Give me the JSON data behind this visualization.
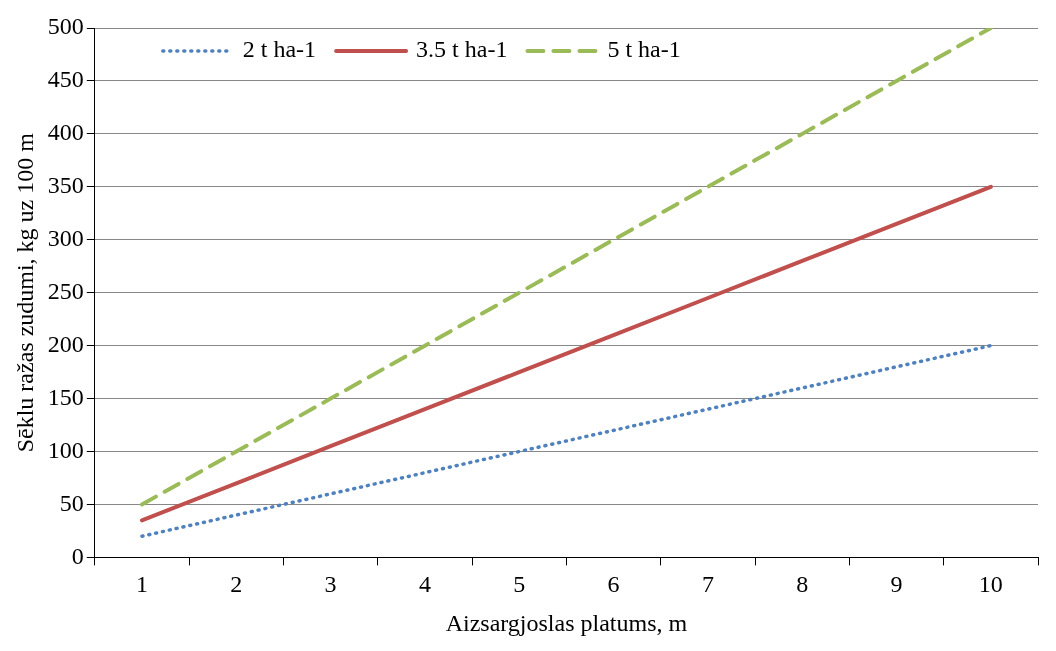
{
  "chart_data": {
    "type": "line",
    "xlabel": "Aizsargjoslas platums, m",
    "ylabel": "Sēklu ražas zudumi, kg uz 100 m",
    "categories": [
      "1",
      "2",
      "3",
      "4",
      "5",
      "6",
      "7",
      "8",
      "9",
      "10"
    ],
    "series": [
      {
        "name": "2 t ha-1",
        "color": "#4f81bd",
        "line_style": "dotted",
        "values": [
          20,
          40,
          60,
          80,
          100,
          120,
          140,
          160,
          180,
          200
        ]
      },
      {
        "name": "3.5 t ha-1",
        "color": "#c0504d",
        "line_style": "solid",
        "values": [
          35,
          70,
          105,
          140,
          175,
          210,
          245,
          280,
          315,
          350
        ]
      },
      {
        "name": "5 t ha-1",
        "color": "#9bbb59",
        "line_style": "dashed",
        "values": [
          50,
          100,
          150,
          200,
          250,
          300,
          350,
          400,
          450,
          500
        ]
      }
    ],
    "ylim": [
      0,
      500
    ],
    "yticks": [
      0,
      50,
      100,
      150,
      200,
      250,
      300,
      350,
      400,
      450,
      500
    ],
    "grid": "y",
    "legend": "top left",
    "marker": "none"
  }
}
